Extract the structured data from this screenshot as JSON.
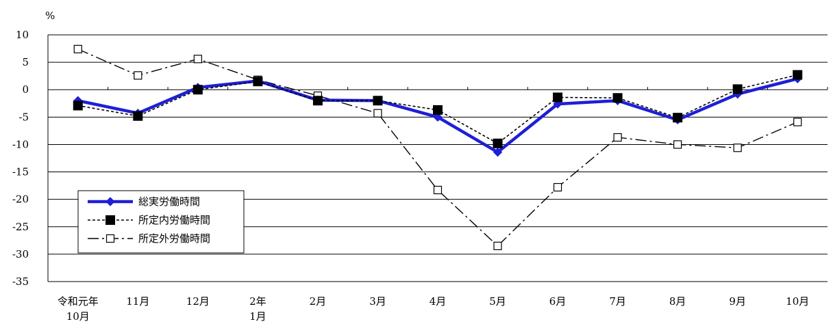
{
  "chart_data": {
    "type": "line",
    "y_unit": "%",
    "ylim": [
      -35,
      10
    ],
    "y_ticks": [
      10,
      5,
      0,
      -5,
      -10,
      -15,
      -20,
      -25,
      -30,
      -35
    ],
    "categories": [
      [
        "令和元年",
        "10月"
      ],
      [
        "11月"
      ],
      [
        "12月"
      ],
      [
        "2年",
        "1月"
      ],
      [
        "2月"
      ],
      [
        "3月"
      ],
      [
        "4月"
      ],
      [
        "5月"
      ],
      [
        "6月"
      ],
      [
        "7月"
      ],
      [
        "8月"
      ],
      [
        "9月"
      ],
      [
        "10月"
      ]
    ],
    "grid": "horizontal",
    "legend_position": "lower-left",
    "series": [
      {
        "name": "総実労働時間",
        "color": "#1f1fd6",
        "style": "solid",
        "marker": "diamond",
        "values": [
          -2.0,
          -4.3,
          0.4,
          1.6,
          -1.9,
          -2.0,
          -5.0,
          -11.4,
          -2.6,
          -2.0,
          -5.5,
          -0.8,
          2.0
        ]
      },
      {
        "name": "所定内労働時間",
        "color": "#000000",
        "style": "dotted",
        "marker": "filled-square",
        "values": [
          -2.9,
          -4.8,
          0.0,
          1.5,
          -2.0,
          -2.0,
          -3.7,
          -9.8,
          -1.4,
          -1.5,
          -5.1,
          0.1,
          2.7
        ]
      },
      {
        "name": "所定外労働時間",
        "color": "#000000",
        "style": "dash-dot",
        "marker": "open-square",
        "values": [
          7.4,
          2.6,
          5.6,
          1.8,
          -1.1,
          -4.3,
          -18.3,
          -28.5,
          -17.8,
          -8.7,
          -10.0,
          -10.6,
          -5.9
        ]
      }
    ]
  }
}
